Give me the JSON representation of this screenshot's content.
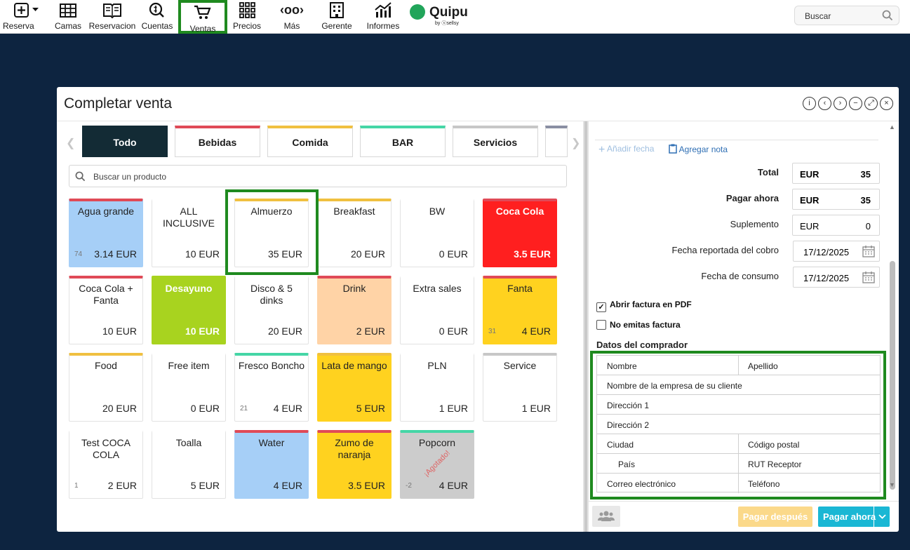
{
  "nav": {
    "items": [
      {
        "label": "Reserva",
        "icon": "plus-square-icon"
      },
      {
        "label": "Camas",
        "icon": "grid-icon"
      },
      {
        "label": "Reservacion",
        "icon": "book-icon"
      },
      {
        "label": "Cuentas",
        "icon": "coin-icon"
      },
      {
        "label": "Ventas",
        "icon": "cart-icon"
      },
      {
        "label": "Precios",
        "icon": "dots-grid-icon"
      },
      {
        "label": "Más",
        "icon": "more-icon"
      },
      {
        "label": "Gerente",
        "icon": "building-icon"
      },
      {
        "label": "Informes",
        "icon": "chart-icon"
      }
    ],
    "logo": {
      "name": "Quipu",
      "by": "by ⓢsellsy"
    },
    "search_placeholder": "Buscar"
  },
  "modal": {
    "title": "Completar venta",
    "tabs": [
      "Todo",
      "Bebidas",
      "Comida",
      "BAR",
      "Servicios"
    ],
    "search_placeholder": "Buscar un producto",
    "products": [
      {
        "name": "Agua grande",
        "price": "3.14 EUR",
        "stock": "74",
        "color": "#a6cff7",
        "band": "#e04a57"
      },
      {
        "name": "ALL INCLUSIVE",
        "price": "10 EUR",
        "stock": "",
        "color": "#ffffff",
        "band": ""
      },
      {
        "name": "Almuerzo",
        "price": "35 EUR",
        "stock": "",
        "color": "#ffffff",
        "band": "#f0c040"
      },
      {
        "name": "Breakfast",
        "price": "20 EUR",
        "stock": "",
        "color": "#ffffff",
        "band": "#f0c040"
      },
      {
        "name": "BW",
        "price": "0 EUR",
        "stock": "",
        "color": "#ffffff",
        "band": ""
      },
      {
        "name": "Coca Cola",
        "price": "3.5 EUR",
        "stock": "",
        "color": "#ff1f1f",
        "band": "#e04a57",
        "bold": true
      },
      {
        "name": "Coca Cola + Fanta",
        "price": "10 EUR",
        "stock": "",
        "color": "#ffffff",
        "band": "#e04a57"
      },
      {
        "name": "Desayuno",
        "price": "10 EUR",
        "stock": "",
        "color": "#a8d31f",
        "band": "#a8d31f",
        "bold": true
      },
      {
        "name": "Disco & 5 dinks",
        "price": "20 EUR",
        "stock": "",
        "color": "#ffffff",
        "band": ""
      },
      {
        "name": "Drink",
        "price": "2 EUR",
        "stock": "",
        "color": "#ffd3a6",
        "band": "#e04a57"
      },
      {
        "name": "Extra sales",
        "price": "0 EUR",
        "stock": "",
        "color": "#ffffff",
        "band": ""
      },
      {
        "name": "Fanta",
        "price": "4 EUR",
        "stock": "31",
        "color": "#ffd21f",
        "band": "#e04a57"
      },
      {
        "name": "Food",
        "price": "20 EUR",
        "stock": "",
        "color": "#ffffff",
        "band": "#f0c040"
      },
      {
        "name": "Free item",
        "price": "0 EUR",
        "stock": "",
        "color": "#ffffff",
        "band": ""
      },
      {
        "name": "Fresco Boncho",
        "price": "4 EUR",
        "stock": "21",
        "color": "#ffffff",
        "band": "#45d6a6"
      },
      {
        "name": "Lata de mango",
        "price": "5 EUR",
        "stock": "",
        "color": "#ffd21f",
        "band": "#f0c040"
      },
      {
        "name": "PLN",
        "price": "1 EUR",
        "stock": "",
        "color": "#ffffff",
        "band": ""
      },
      {
        "name": "Service",
        "price": "1 EUR",
        "stock": "",
        "color": "#ffffff",
        "band": "#c7c7c7"
      },
      {
        "name": "Test COCA COLA",
        "price": "2 EUR",
        "stock": "1",
        "color": "#ffffff",
        "band": ""
      },
      {
        "name": "Toalla",
        "price": "5 EUR",
        "stock": "",
        "color": "#ffffff",
        "band": ""
      },
      {
        "name": "Water",
        "price": "4 EUR",
        "stock": "",
        "color": "#a6cff7",
        "band": "#e04a57"
      },
      {
        "name": "Zumo de naranja",
        "price": "3.5 EUR",
        "stock": "",
        "color": "#ffd21f",
        "band": "#e04a57"
      },
      {
        "name": "Popcorn",
        "price": "4 EUR",
        "stock": "-2",
        "color": "#cccccc",
        "band": "#45d6a6",
        "stamp": "¡Agotado!"
      }
    ],
    "right": {
      "add_date": "Añadir fecha",
      "add_note": "Agregar nota",
      "total_label": "Total",
      "total_cur": "EUR",
      "total_val": "35",
      "pay_now_label": "Pagar ahora",
      "pay_now_cur": "EUR",
      "pay_now_val": "35",
      "supplement_label": "Suplemento",
      "supplement_cur": "EUR",
      "supplement_val": "0",
      "reported_date_label": "Fecha reportada del cobro",
      "reported_date": "17/12/2025",
      "consumption_date_label": "Fecha de consumo",
      "consumption_date": "17/12/2025",
      "open_pdf_label": "Abrir factura en PDF",
      "open_pdf_checked": true,
      "no_invoice_label": "No emitas factura",
      "no_invoice_checked": false,
      "buyer_title": "Datos del comprador",
      "buyer": {
        "first_name": "Nombre",
        "last_name": "Apellido",
        "company": "Nombre de la empresa de su cliente",
        "address1": "Dirección 1",
        "address2": "Dirección 2",
        "city": "Ciudad",
        "postal": "Código postal",
        "country": "País",
        "rut": "RUT Receptor",
        "email": "Correo electrónico",
        "phone": "Teléfono"
      },
      "pay_later_btn": "Pagar después",
      "pay_now_btn": "Pagar ahora"
    }
  }
}
